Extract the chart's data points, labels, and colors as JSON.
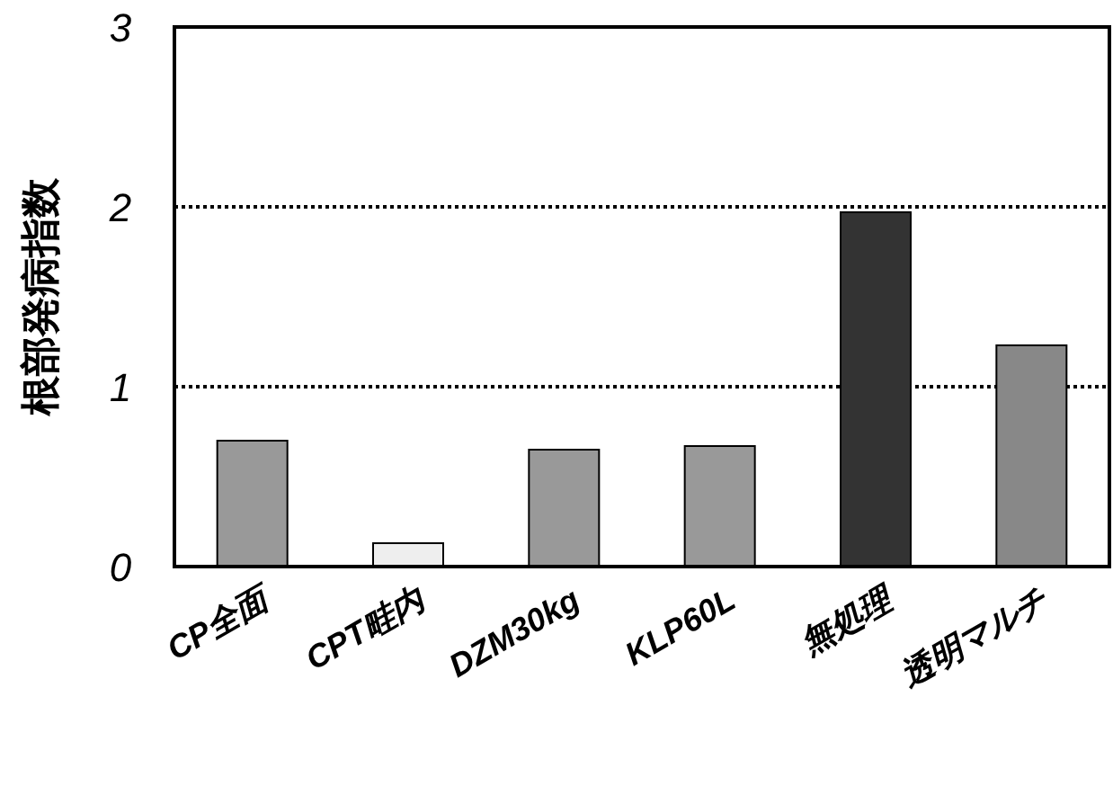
{
  "chart_data": {
    "type": "bar",
    "ylabel": "根部発病指数",
    "categories": [
      "CP全面",
      "CPT畦内",
      "DZM30kg",
      "KLP60L",
      "無処理",
      "透明マルチ"
    ],
    "values": [
      0.7,
      0.13,
      0.65,
      0.67,
      1.97,
      1.23
    ],
    "colors": [
      "#999999",
      "#eeeeee",
      "#999999",
      "#999999",
      "#333333",
      "#888888"
    ],
    "ylim": [
      0,
      3
    ],
    "yticks": [
      0,
      1,
      2,
      3
    ],
    "grid": "y"
  }
}
